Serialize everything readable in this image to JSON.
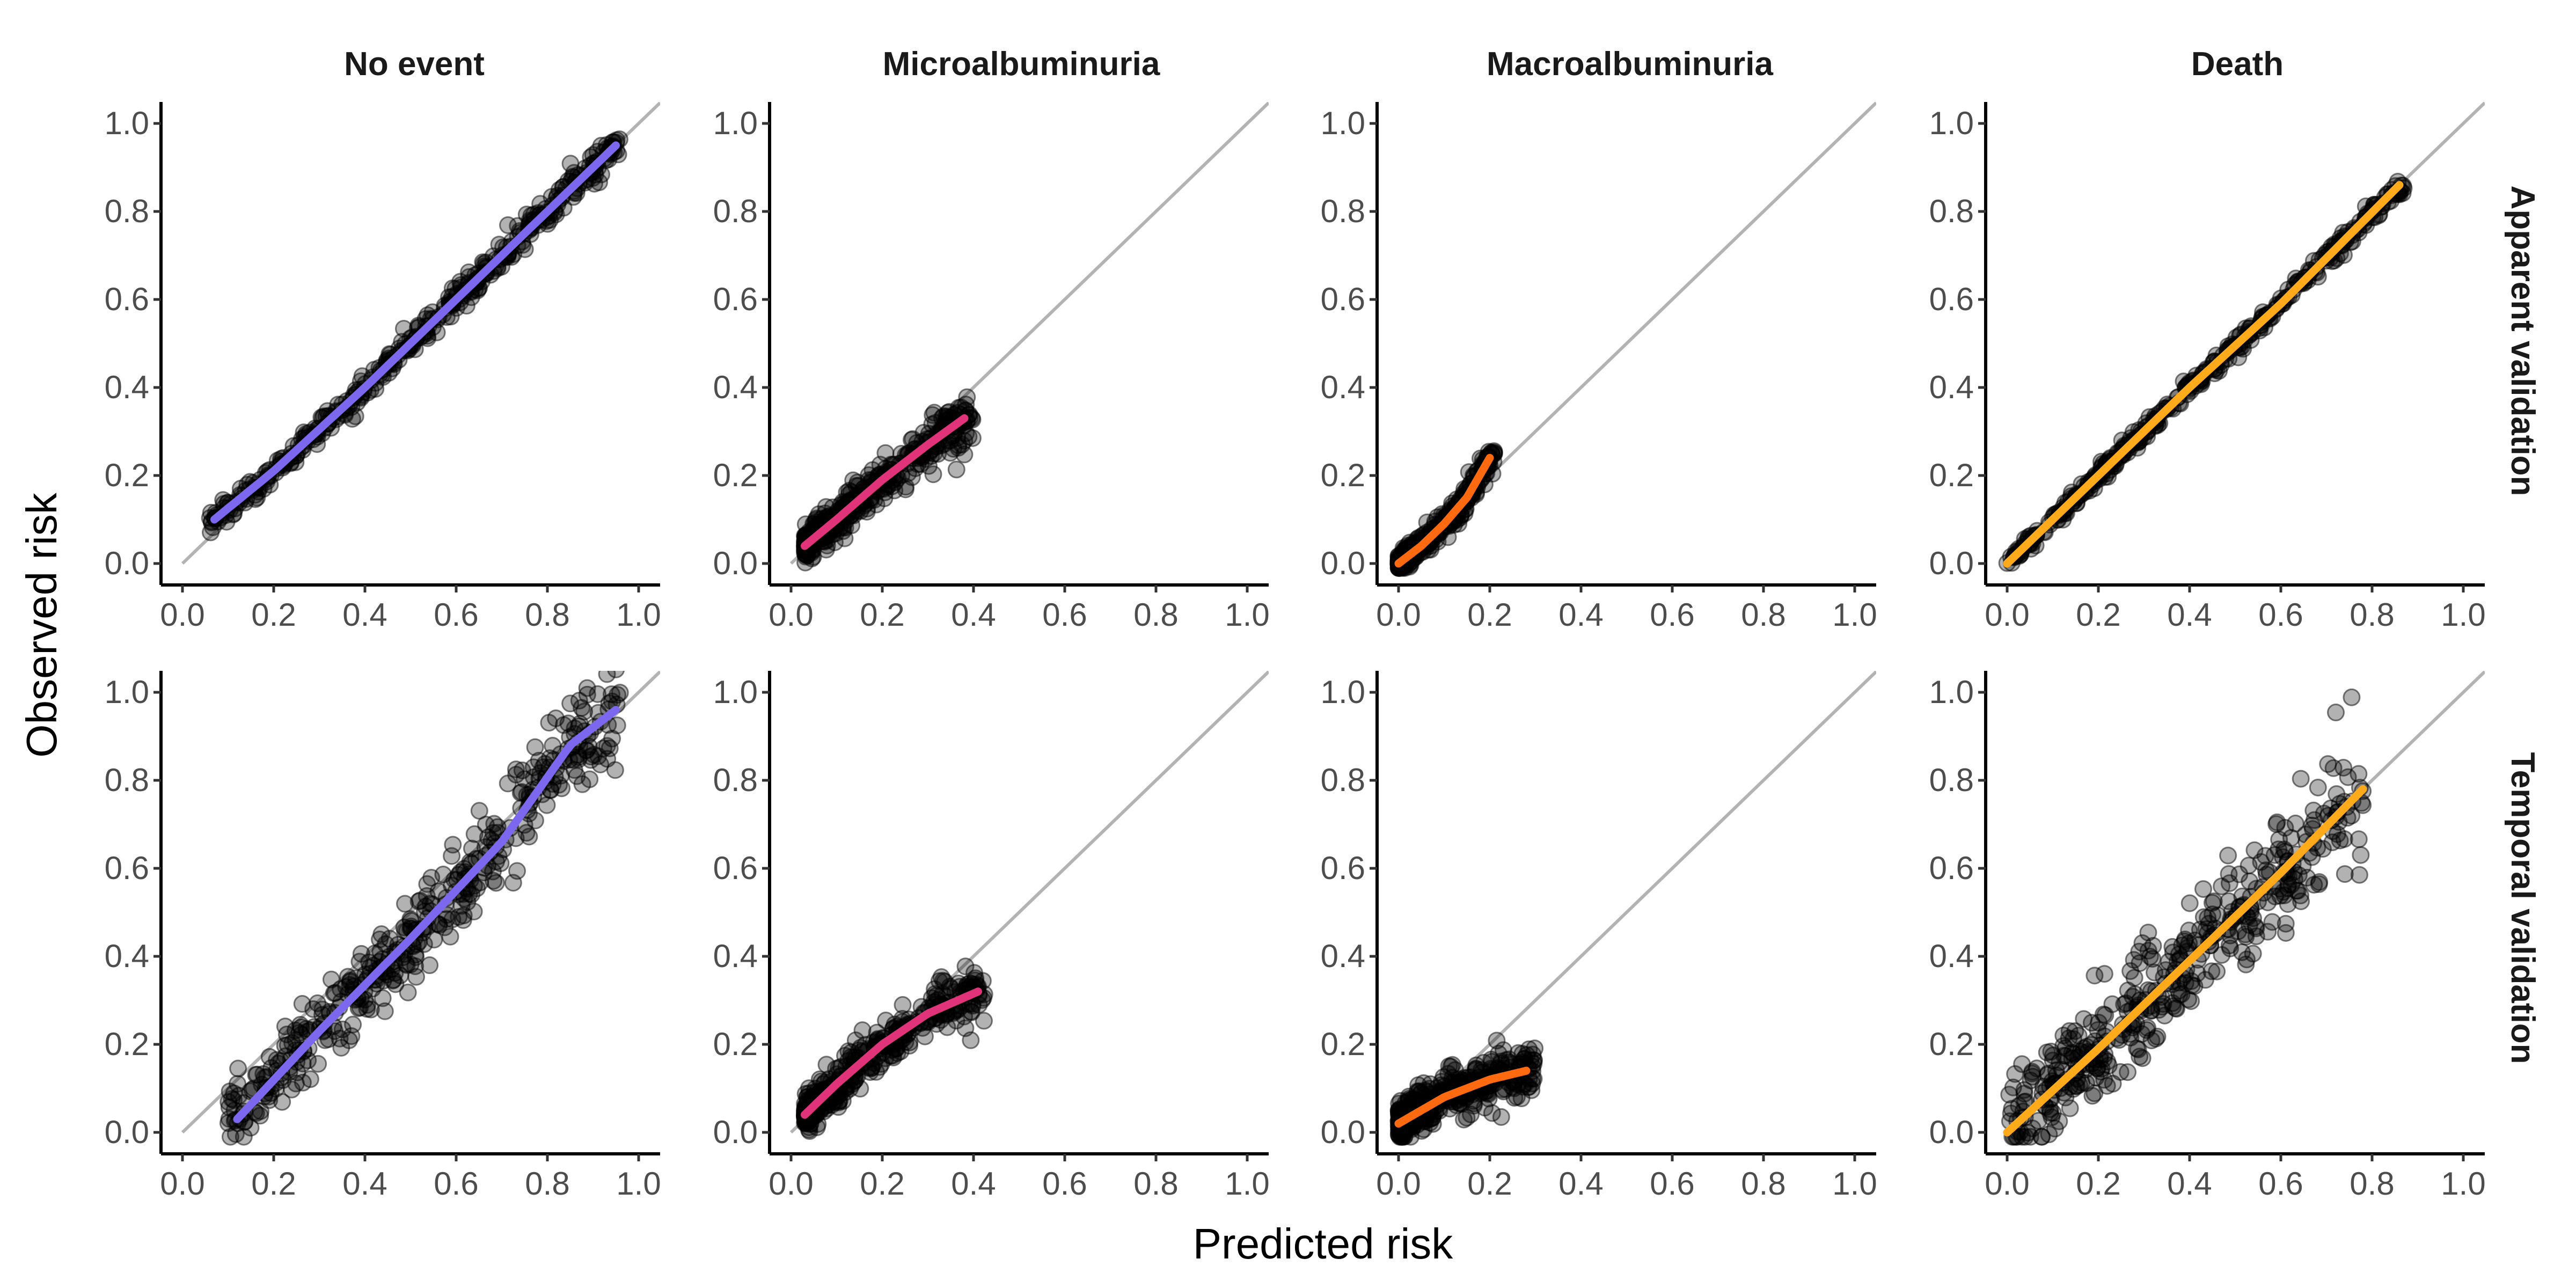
{
  "chart_data": {
    "type": "scatter",
    "xlabel": "Predicted risk",
    "ylabel": "Observed risk",
    "xlim": [
      0,
      1
    ],
    "ylim": [
      0,
      1
    ],
    "ticks": [
      "0.0",
      "0.2",
      "0.4",
      "0.6",
      "0.8",
      "1.0"
    ],
    "tick_values": [
      0,
      0.2,
      0.4,
      0.6,
      0.8,
      1.0
    ],
    "grid": false,
    "reference_line": "identity",
    "columns": [
      "No event",
      "Microalbuminuria",
      "Macroalbuminuria",
      "Death"
    ],
    "rows": [
      "Apparent validation",
      "Temporal validation"
    ],
    "colors": {
      "No event": "#7B68EE",
      "Microalbuminuria": "#E0337A",
      "Macroalbuminuria": "#FF6A10",
      "Death": "#FFAA1A",
      "points": "#000000",
      "reference": "#B3B3B3"
    },
    "panels": [
      {
        "row": "Apparent validation",
        "column": "No event",
        "points_x_range": [
          0.06,
          0.96
        ],
        "points_spread": 0.012,
        "curve": [
          [
            0.07,
            0.1
          ],
          [
            0.2,
            0.21
          ],
          [
            0.4,
            0.4
          ],
          [
            0.6,
            0.6
          ],
          [
            0.8,
            0.8
          ],
          [
            0.95,
            0.95
          ]
        ]
      },
      {
        "row": "Apparent validation",
        "column": "Microalbuminuria",
        "points_x_range": [
          0.03,
          0.4
        ],
        "points_spread": 0.02,
        "curve": [
          [
            0.03,
            0.04
          ],
          [
            0.1,
            0.1
          ],
          [
            0.2,
            0.19
          ],
          [
            0.3,
            0.27
          ],
          [
            0.38,
            0.33
          ]
        ]
      },
      {
        "row": "Apparent validation",
        "column": "Macroalbuminuria",
        "points_x_range": [
          0.0,
          0.21
        ],
        "points_spread": 0.01,
        "curve": [
          [
            0.0,
            0.0
          ],
          [
            0.05,
            0.04
          ],
          [
            0.1,
            0.09
          ],
          [
            0.15,
            0.15
          ],
          [
            0.2,
            0.24
          ]
        ]
      },
      {
        "row": "Apparent validation",
        "column": "Death",
        "points_x_range": [
          0.0,
          0.87
        ],
        "points_spread": 0.008,
        "curve": [
          [
            0.0,
            0.0
          ],
          [
            0.2,
            0.2
          ],
          [
            0.4,
            0.4
          ],
          [
            0.6,
            0.59
          ],
          [
            0.86,
            0.86
          ]
        ]
      },
      {
        "row": "Temporal validation",
        "column": "No event",
        "points_x_range": [
          0.1,
          0.96
        ],
        "points_spread": 0.04,
        "curve": [
          [
            0.12,
            0.03
          ],
          [
            0.3,
            0.23
          ],
          [
            0.5,
            0.44
          ],
          [
            0.7,
            0.66
          ],
          [
            0.85,
            0.88
          ],
          [
            0.95,
            0.96
          ]
        ]
      },
      {
        "row": "Temporal validation",
        "column": "Microalbuminuria",
        "points_x_range": [
          0.03,
          0.43
        ],
        "points_spread": 0.02,
        "curve": [
          [
            0.03,
            0.04
          ],
          [
            0.1,
            0.11
          ],
          [
            0.2,
            0.2
          ],
          [
            0.3,
            0.27
          ],
          [
            0.41,
            0.32
          ]
        ]
      },
      {
        "row": "Temporal validation",
        "column": "Macroalbuminuria",
        "points_x_range": [
          0.0,
          0.3
        ],
        "points_spread": 0.02,
        "curve": [
          [
            0.0,
            0.02
          ],
          [
            0.05,
            0.05
          ],
          [
            0.1,
            0.08
          ],
          [
            0.2,
            0.12
          ],
          [
            0.28,
            0.14
          ]
        ]
      },
      {
        "row": "Temporal validation",
        "column": "Death",
        "points_x_range": [
          0.0,
          0.78
        ],
        "points_spread": 0.05,
        "curve": [
          [
            0.0,
            0.0
          ],
          [
            0.2,
            0.19
          ],
          [
            0.4,
            0.39
          ],
          [
            0.6,
            0.59
          ],
          [
            0.78,
            0.78
          ]
        ]
      }
    ]
  }
}
